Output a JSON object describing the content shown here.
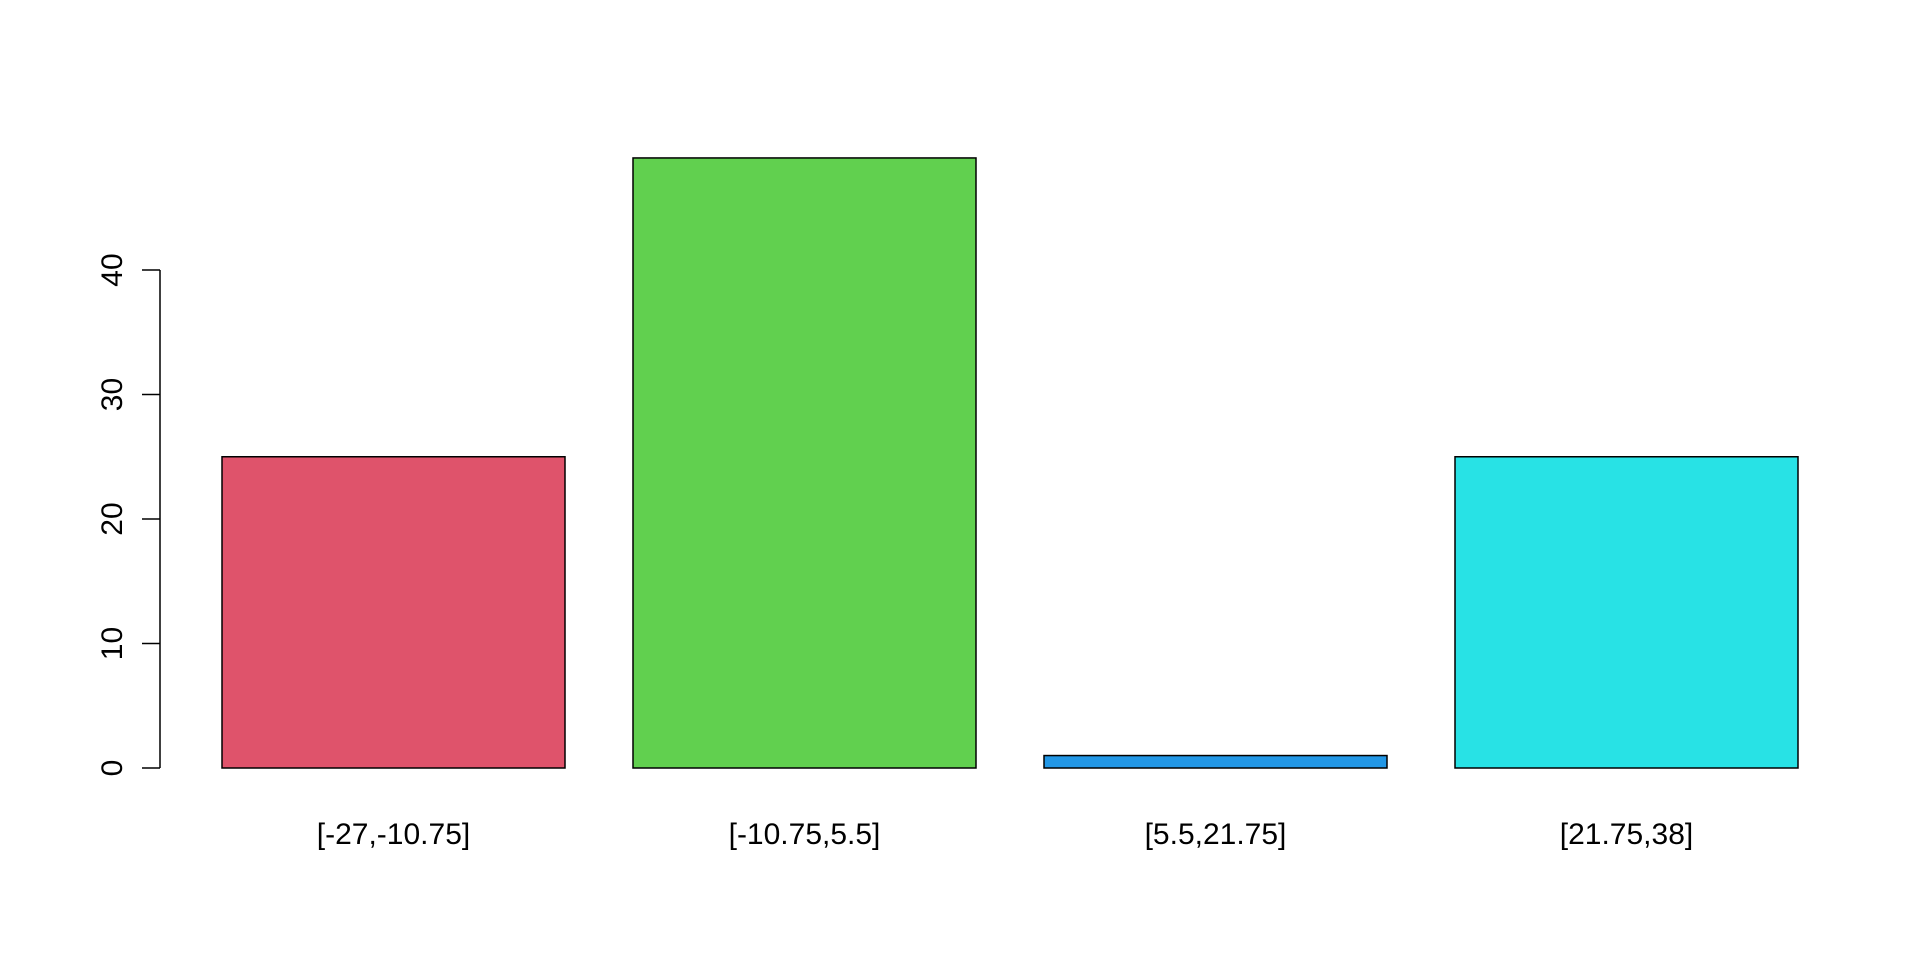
{
  "chart_data": {
    "type": "bar",
    "title": "",
    "xlabel": "",
    "ylabel": "",
    "categories": [
      "[-27,-10.75]",
      "[-10.75,5.5]",
      "[5.5,21.75]",
      "[21.75,38]"
    ],
    "values": [
      25,
      49,
      1,
      25
    ],
    "colors": [
      "#DF536B",
      "#61D04F",
      "#2297E6",
      "#28E2E5"
    ],
    "ylim": [
      0,
      49
    ],
    "yticks": [
      0,
      10,
      20,
      30,
      40
    ],
    "ytick_labels": [
      "0",
      "10",
      "20",
      "30",
      "40"
    ],
    "grid": false,
    "legend": "none"
  }
}
